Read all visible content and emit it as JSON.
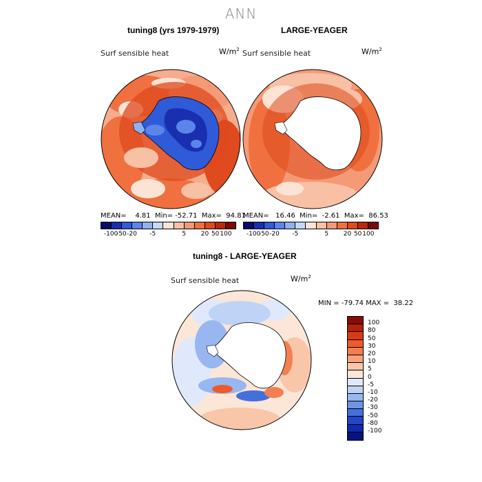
{
  "page": {
    "title": "ANN",
    "diff_title": "tuning8 - LARGE-YEAGER"
  },
  "panels": {
    "left": {
      "title": "tuning8 (yrs 1979-1979)",
      "variable": "Surf sensible heat",
      "unit": "W/m",
      "unit_sup": "2",
      "stats": "MEAN=    4.81  Min= -52.71  Max=  94.81"
    },
    "right": {
      "title": "LARGE-YEAGER",
      "variable": "Surf sensible heat",
      "unit": "W/m",
      "unit_sup": "2",
      "stats": "MEAN=   16.46  Min=  -2.61  Max=  86.53"
    },
    "diff": {
      "variable": "Surf sensible heat",
      "unit": "W/m",
      "unit_sup": "2",
      "stats": "MIN = -79.74 MAX =  38.22"
    }
  },
  "colorbars": {
    "horizontal": {
      "colors": [
        "#0a0a6b",
        "#1a2fb0",
        "#2f5ad8",
        "#5a86ea",
        "#8fb0f2",
        "#c4d8f8",
        "#fbe4d6",
        "#f8c0a4",
        "#f59a76",
        "#f0703f",
        "#df4a1e",
        "#b82a10",
        "#7a0a06"
      ],
      "tick_labels": [
        "-100",
        "-50",
        "-20",
        "-5",
        "5",
        "20",
        "50",
        "100"
      ]
    },
    "vertical": {
      "colors": [
        "#8b0a06",
        "#b3200c",
        "#d93a14",
        "#f05a28",
        "#f47e50",
        "#f7a27c",
        "#f9c6aa",
        "#fbe6d8",
        "#dfe9fb",
        "#bfd3f6",
        "#98b6ef",
        "#6f94e6",
        "#4470dc",
        "#1f47c8",
        "#0e2bb0",
        "#07147e"
      ],
      "tick_labels": [
        "100",
        "80",
        "50",
        "30",
        "20",
        "10",
        "5",
        "0",
        "-5",
        "-10",
        "-20",
        "-30",
        "-50",
        "-80",
        "-100"
      ]
    }
  }
}
